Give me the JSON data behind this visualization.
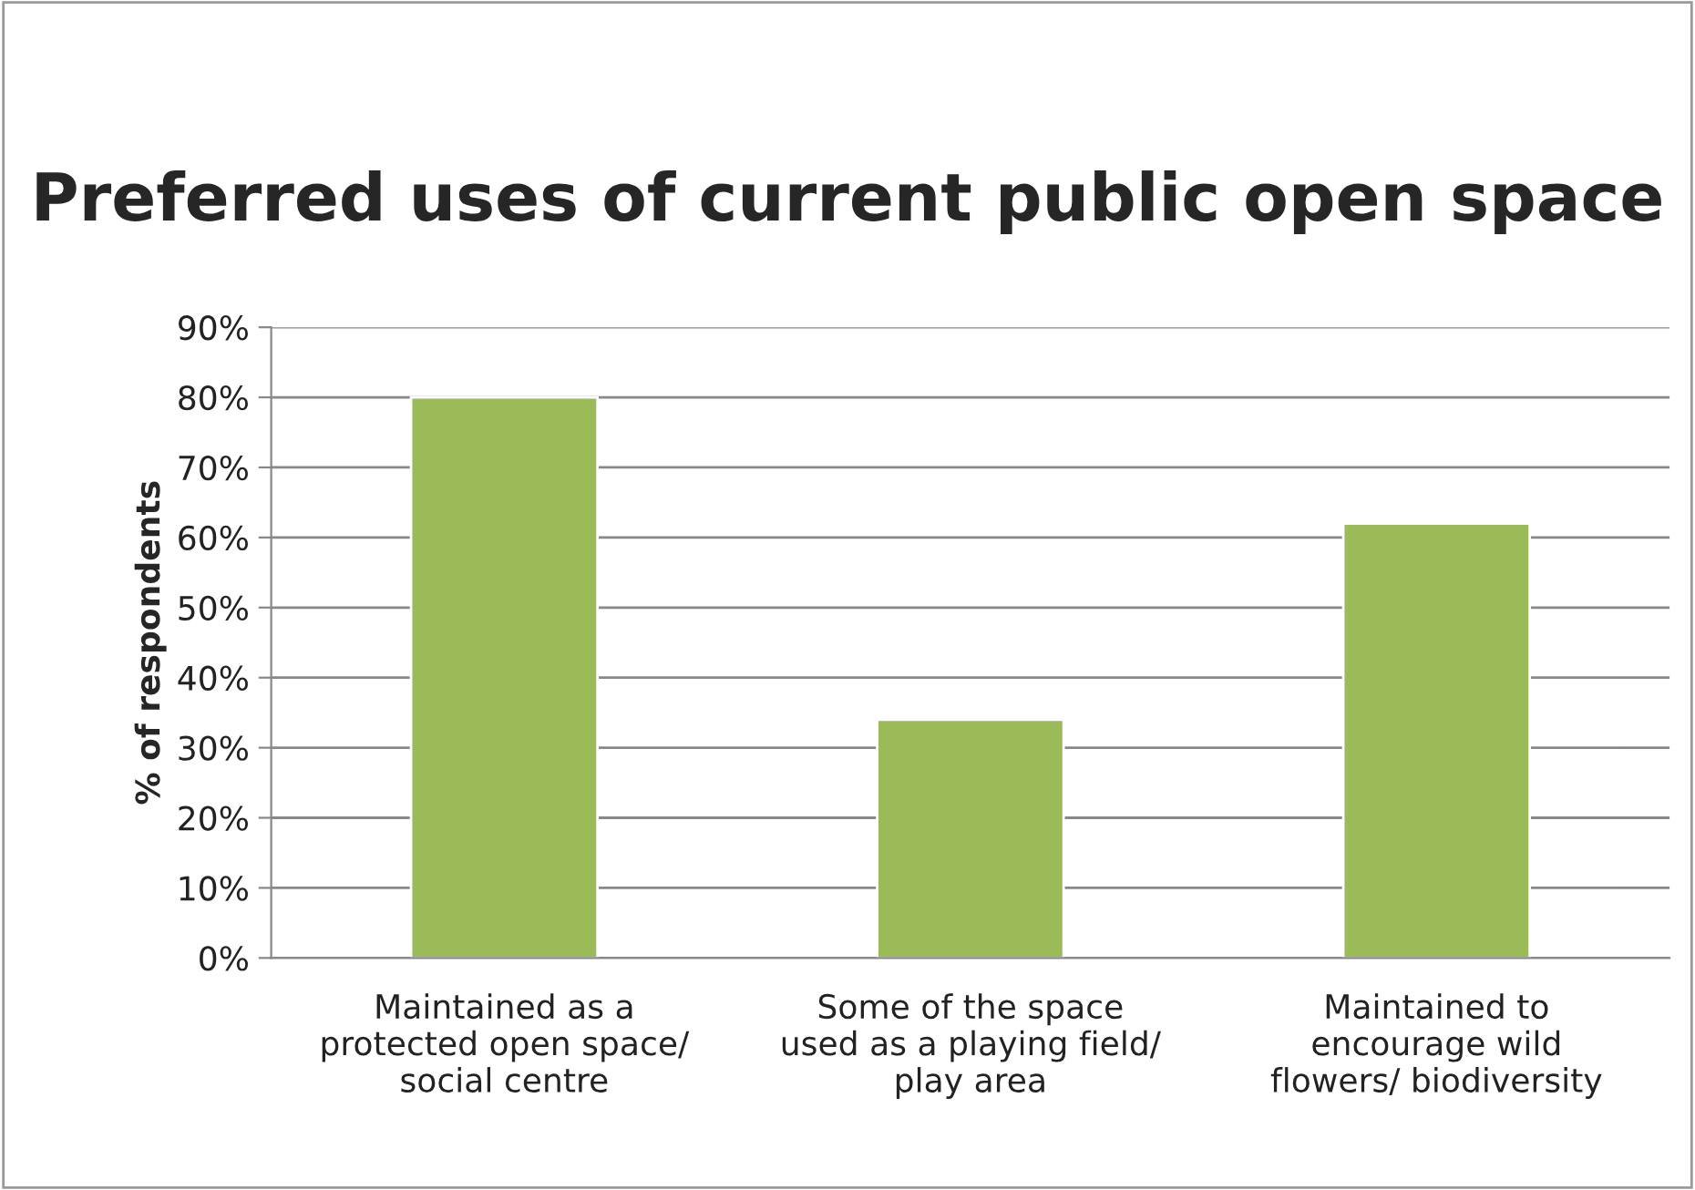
{
  "chart_data": {
    "type": "bar",
    "title": "Preferred uses of current public open space",
    "ylabel": "% of respondents",
    "categories": [
      "Maintained as a\nprotected open space/\nsocial centre",
      "Some of the space\nused as a playing field/\nplay area",
      "Maintained to\nencourage wild\nflowers/ biodiversity"
    ],
    "values": [
      80,
      34,
      62
    ],
    "color": "#9bbb59",
    "ylim": [
      0,
      90
    ],
    "yticks": [
      {
        "value": 0,
        "label": "0%"
      },
      {
        "value": 10,
        "label": "10%"
      },
      {
        "value": 20,
        "label": "20%"
      },
      {
        "value": 30,
        "label": "30%"
      },
      {
        "value": 40,
        "label": "40%"
      },
      {
        "value": 50,
        "label": "50%"
      },
      {
        "value": 60,
        "label": "60%"
      },
      {
        "value": 70,
        "label": "70%"
      },
      {
        "value": 80,
        "label": "80%"
      },
      {
        "value": 90,
        "label": "90%"
      }
    ],
    "grid": "y"
  }
}
